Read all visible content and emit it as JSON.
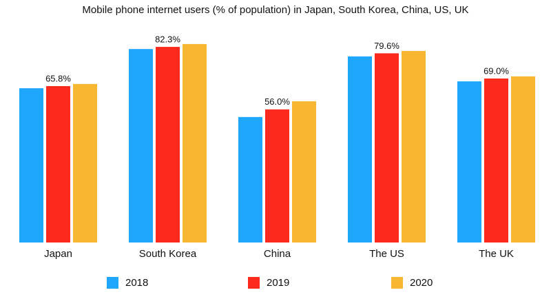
{
  "chart_data": {
    "type": "bar",
    "title": "Mobile phone internet users (% of population) in Japan, South Korea, China, US, UK",
    "categories": [
      "Japan",
      "South Korea",
      "China",
      "The US",
      "The UK"
    ],
    "series": [
      {
        "name": "2018",
        "color": "#1ea7fd",
        "values": [
          64.9,
          81.4,
          52.8,
          78.3,
          67.8
        ]
      },
      {
        "name": "2019",
        "color": "#fc2a1c",
        "values": [
          65.8,
          82.3,
          56.0,
          79.6,
          69.0
        ],
        "value_labels": [
          "65.8%",
          "82.3%",
          "56.0%",
          "79.6%",
          "69.0%"
        ]
      },
      {
        "name": "2020",
        "color": "#f7b731",
        "values": [
          66.7,
          83.5,
          59.4,
          80.6,
          69.9
        ]
      }
    ]
  }
}
